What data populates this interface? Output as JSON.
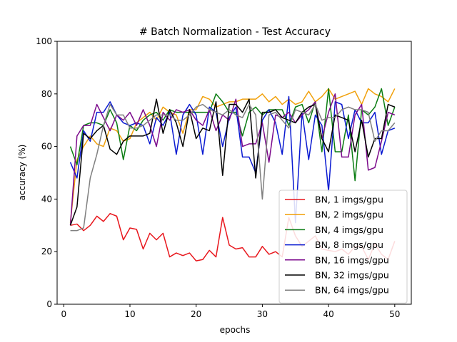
{
  "chart_data": {
    "type": "line",
    "title": "# Batch Normalization - Test Accuracy",
    "xlabel": "epochs",
    "ylabel": "accuracy (%)",
    "xlim": [
      -1,
      52.5
    ],
    "ylim": [
      0,
      100
    ],
    "xticks": [
      0,
      10,
      20,
      30,
      40,
      50
    ],
    "yticks": [
      0,
      20,
      40,
      60,
      80,
      100
    ],
    "grid": false,
    "legend_position": "lower-right",
    "x": [
      1,
      2,
      3,
      4,
      5,
      6,
      7,
      8,
      9,
      10,
      11,
      12,
      13,
      14,
      15,
      16,
      17,
      18,
      19,
      20,
      21,
      22,
      23,
      24,
      25,
      26,
      27,
      28,
      29,
      30,
      31,
      32,
      33,
      34,
      35,
      36,
      37,
      38,
      39,
      40,
      41,
      42,
      43,
      44,
      45,
      46,
      47,
      48,
      49,
      50
    ],
    "series": [
      {
        "name": "BN, 1 imgs/gpu",
        "color": "#e8171d",
        "values": [
          30,
          30.5,
          28,
          30,
          33.5,
          31.5,
          34.5,
          33.5,
          24.5,
          29,
          28.5,
          21,
          27,
          24.5,
          27,
          18,
          19.5,
          18.5,
          19.5,
          16.5,
          17,
          20.5,
          18,
          33,
          22.5,
          21,
          21.5,
          18,
          18,
          22,
          19,
          20,
          18,
          33,
          26,
          22,
          24,
          26,
          21,
          20.5,
          20,
          21,
          19,
          22,
          22,
          17,
          23,
          19,
          17,
          24
        ]
      },
      {
        "name": "BN, 2 imgs/gpu",
        "color": "#f1a10c",
        "values": [
          31,
          55,
          60,
          64,
          61,
          60,
          67,
          66,
          62,
          63,
          69,
          71,
          73,
          70,
          75,
          73,
          72,
          65,
          74,
          74,
          79,
          78,
          75,
          76,
          77,
          77,
          78,
          78,
          78,
          80,
          77,
          79,
          76,
          78,
          76,
          77,
          81,
          77,
          79,
          82,
          78,
          79,
          80,
          81,
          76,
          82,
          80,
          79,
          77,
          82
        ]
      },
      {
        "name": "BN, 4 imgs/gpu",
        "color": "#0a7d12",
        "values": [
          60,
          53,
          68,
          69,
          69,
          68,
          74,
          69,
          55,
          68,
          66,
          70,
          72,
          73,
          70,
          74,
          73,
          73,
          73,
          73,
          73,
          73,
          80,
          77,
          73,
          73,
          64,
          73,
          75,
          72,
          74,
          74,
          74,
          68,
          75,
          76,
          69,
          77,
          58,
          82,
          58,
          58,
          72,
          47,
          74,
          72,
          75,
          82,
          68,
          75
        ]
      },
      {
        "name": "BN, 8 imgs/gpu",
        "color": "#0a1ad1",
        "values": [
          54,
          48,
          66,
          62,
          73,
          73,
          77,
          72,
          69,
          68,
          69,
          68,
          61,
          71,
          68,
          73,
          57,
          72,
          76,
          72,
          57,
          75,
          73,
          60,
          71,
          75,
          56,
          56,
          50,
          70,
          74,
          69,
          57,
          79,
          31,
          73,
          55,
          72,
          68,
          43,
          77,
          76,
          63,
          74,
          69,
          69,
          73,
          57,
          66,
          67
        ]
      },
      {
        "name": "BN, 16 imgs/gpu",
        "color": "#7c0a8c",
        "values": [
          30,
          64,
          68,
          68,
          76,
          71,
          66,
          72,
          70,
          73,
          68,
          74,
          68,
          60,
          73,
          70,
          74,
          73,
          74,
          70,
          68,
          74,
          66,
          72,
          70,
          78,
          60,
          61,
          61,
          69,
          54,
          72,
          71,
          73,
          69,
          72,
          74,
          77,
          63,
          73,
          80,
          56,
          56,
          72,
          76,
          51,
          52,
          62,
          73,
          72
        ]
      },
      {
        "name": "BN, 32 imgs/gpu",
        "color": "#000000",
        "values": [
          30,
          37,
          65,
          63,
          66,
          68,
          59,
          57,
          62,
          64,
          64,
          64,
          65,
          78,
          65,
          74,
          69,
          60,
          74,
          63,
          67,
          66,
          77,
          49,
          76,
          76,
          73,
          78,
          48,
          73,
          73,
          74,
          71,
          70,
          69,
          73,
          75,
          76,
          63,
          58,
          72,
          71,
          70,
          58,
          70,
          56,
          63,
          63,
          76,
          75
        ]
      },
      {
        "name": "BN, 64 imgs/gpu",
        "color": "#808080",
        "values": [
          28,
          28,
          29,
          48,
          57,
          68,
          76,
          72,
          72,
          67,
          67,
          68,
          70,
          72,
          72,
          72,
          70,
          70,
          72,
          75,
          76,
          74,
          73,
          72,
          74,
          72,
          71,
          76,
          72,
          40,
          72,
          73,
          70,
          67,
          74,
          73,
          72,
          76,
          70,
          71,
          71,
          74,
          75,
          74,
          74,
          73,
          62,
          66,
          66,
          69
        ]
      }
    ]
  }
}
